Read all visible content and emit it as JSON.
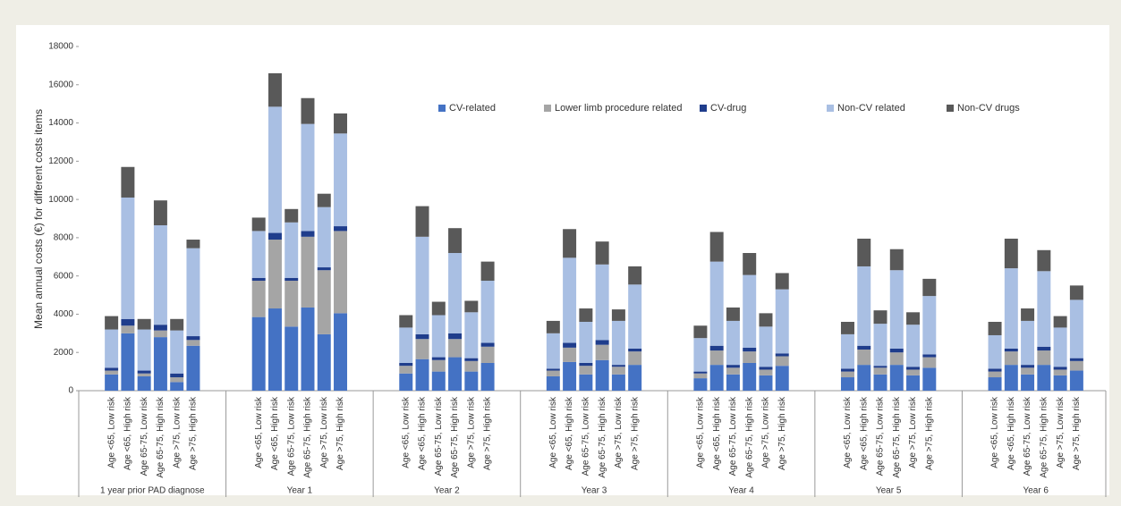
{
  "chart_data": {
    "type": "stacked_bar",
    "y_label": "Mean annual costs (€) for different costs items",
    "ylim": [
      0,
      18000
    ],
    "yticks": [
      0,
      2000,
      4000,
      6000,
      8000,
      10000,
      12000,
      14000,
      16000,
      18000
    ],
    "groups": [
      {
        "label": "1 year prior PAD diagnose",
        "categories": [
          "Age <65, Low risk",
          "Age <65, High risk",
          "Age 65-75, Low risk",
          "Age 65-75, High risk",
          "Age >75, Low risk",
          "Age >75, High risk"
        ]
      },
      {
        "label": "Year 1",
        "categories": [
          "Age <65, Low risk",
          "Age <65, High risk",
          "Age 65-75, Low risk",
          "Age 65-75, High risk",
          "Age >75, Low risk",
          "Age >75, High risk"
        ]
      },
      {
        "label": "Year 2",
        "categories": [
          "Age <65, Low risk",
          "Age <65, High risk",
          "Age 65-75, Low risk",
          "Age 65-75, High risk",
          "Age >75, Low risk",
          "Age >75, High risk"
        ]
      },
      {
        "label": "Year 3",
        "categories": [
          "Age <65, Low risk",
          "Age <65, High risk",
          "Age 65-75, Low risk",
          "Age 65-75, High risk",
          "Age >75, Low risk",
          "Age >75, High risk"
        ]
      },
      {
        "label": "Year 4",
        "categories": [
          "Age <65, Low risk",
          "Age <65, High risk",
          "Age 65-75, Low risk",
          "Age 65-75, High risk",
          "Age >75, Low risk",
          "Age >75, High risk"
        ]
      },
      {
        "label": "Year 5",
        "categories": [
          "Age <65, Low risk",
          "Age <65, High risk",
          "Age 65-75, Low risk",
          "Age 65-75, High risk",
          "Age >75, Low risk",
          "Age >75, High risk"
        ]
      },
      {
        "label": "Year 6",
        "categories": [
          "Age <65, Low risk",
          "Age <65, High risk",
          "Age 65-75, Low risk",
          "Age 65-75, High risk",
          "Age >75, Low risk",
          "Age >75, High risk"
        ]
      }
    ],
    "series": [
      {
        "name": "CV-related",
        "color": "#4472c4",
        "values": [
          850,
          3000,
          750,
          2800,
          450,
          2350,
          3850,
          4300,
          3350,
          4350,
          2950,
          4050,
          900,
          1650,
          1000,
          1750,
          1000,
          1450,
          750,
          1500,
          850,
          1600,
          850,
          1350,
          650,
          1350,
          850,
          1450,
          800,
          1300,
          700,
          1350,
          850,
          1350,
          800,
          1200,
          700,
          1350,
          850,
          1350,
          800,
          1050
        ]
      },
      {
        "name": "Lower limb procedure related",
        "color": "#a5a5a5",
        "values": [
          200,
          400,
          150,
          350,
          250,
          300,
          1900,
          3600,
          2400,
          3700,
          3350,
          4300,
          400,
          1050,
          600,
          950,
          550,
          850,
          300,
          750,
          450,
          800,
          400,
          700,
          250,
          750,
          350,
          600,
          300,
          500,
          300,
          800,
          350,
          650,
          300,
          550,
          300,
          700,
          350,
          750,
          300,
          500
        ]
      },
      {
        "name": "CV-drug",
        "color": "#1f3d8c",
        "values": [
          150,
          350,
          150,
          300,
          200,
          200,
          150,
          350,
          150,
          300,
          150,
          250,
          150,
          250,
          150,
          300,
          150,
          200,
          100,
          250,
          150,
          250,
          100,
          150,
          100,
          250,
          150,
          200,
          150,
          150,
          150,
          200,
          100,
          200,
          150,
          150,
          150,
          150,
          150,
          200,
          150,
          150
        ]
      },
      {
        "name": "Non-CV related",
        "color": "#a9bfe3",
        "values": [
          2000,
          6350,
          2150,
          5200,
          2250,
          4600,
          2450,
          6600,
          2900,
          5600,
          3150,
          4850,
          1850,
          5100,
          2200,
          4200,
          2400,
          3250,
          1850,
          4450,
          2150,
          3950,
          2300,
          3350,
          1750,
          4400,
          2300,
          3800,
          2100,
          3350,
          1800,
          4150,
          2200,
          4100,
          2200,
          3050,
          1750,
          4200,
          2300,
          3950,
          2050,
          3050
        ]
      },
      {
        "name": "Non-CV drugs",
        "color": "#595959",
        "values": [
          700,
          1600,
          550,
          1300,
          600,
          450,
          700,
          1750,
          700,
          1350,
          700,
          1050,
          650,
          1600,
          700,
          1300,
          600,
          1000,
          650,
          1500,
          700,
          1200,
          600,
          950,
          650,
          1550,
          700,
          1150,
          700,
          850,
          650,
          1450,
          700,
          1100,
          650,
          900,
          700,
          1550,
          650,
          1100,
          600,
          750
        ]
      }
    ]
  }
}
